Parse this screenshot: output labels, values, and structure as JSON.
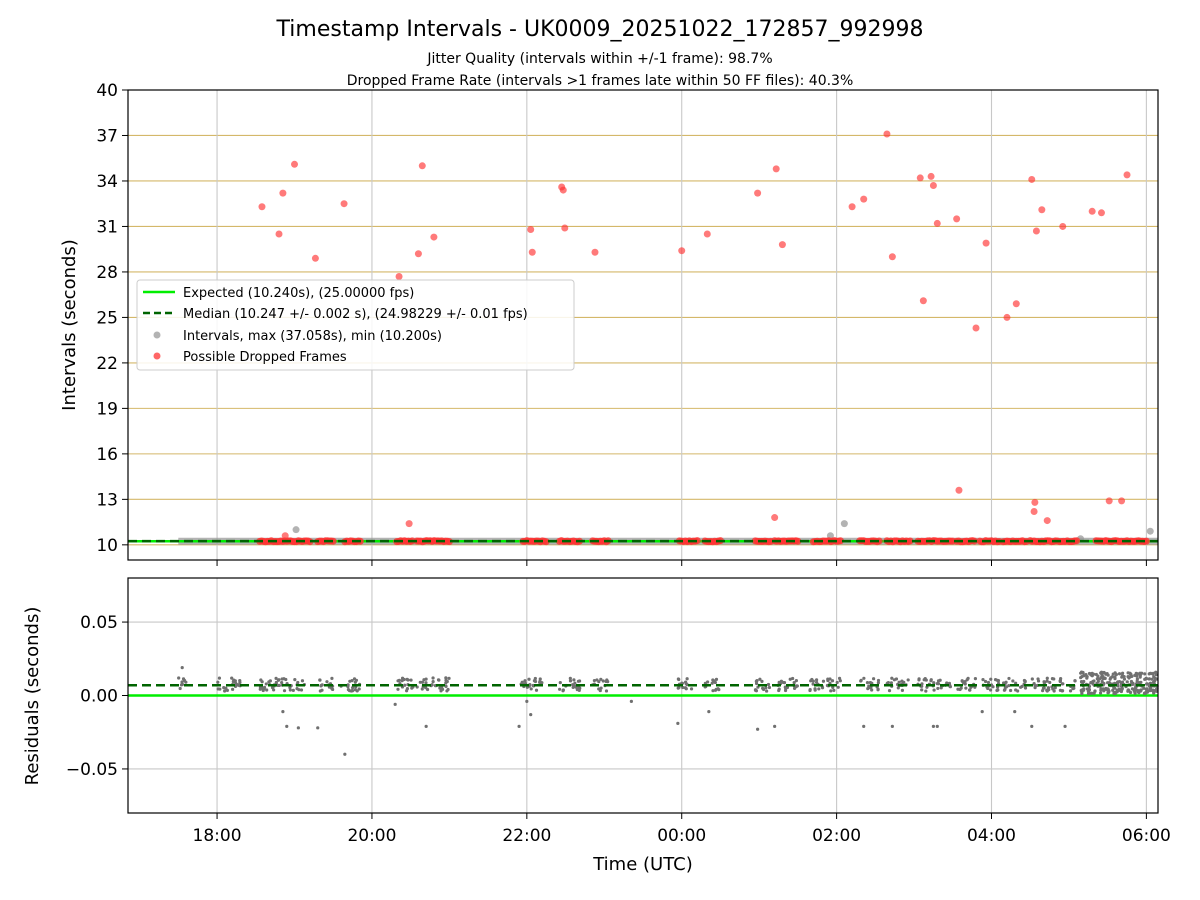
{
  "chart_data": {
    "type": "scatter",
    "title": "Timestamp Intervals - UK0009_20251022_172857_992998",
    "subtitle_1": "Jitter Quality (intervals within +/-1 frame): 98.7%",
    "subtitle_2": "Dropped Frame Rate (intervals >1 frames late within 50 FF files): 40.3%",
    "xlabel": "Time (UTC)",
    "x_ticks": [
      "18:00",
      "20:00",
      "22:00",
      "00:00",
      "02:00",
      "04:00",
      "06:00"
    ],
    "x_tick_hours": [
      18,
      20,
      22,
      24,
      26,
      28,
      30
    ],
    "xlim_hours": [
      16.85,
      30.15
    ],
    "top_panel": {
      "ylabel": "Intervals (seconds)",
      "ylim": [
        9,
        40
      ],
      "y_ticks": [
        "10",
        "13",
        "16",
        "19",
        "22",
        "25",
        "28",
        "31",
        "34",
        "37",
        "40"
      ],
      "expected_interval": 10.24,
      "median_interval": 10.247,
      "max_interval": 37.058,
      "min_interval": 10.2,
      "dropped_frames_high": [
        [
          18.58,
          32.3
        ],
        [
          18.8,
          30.5
        ],
        [
          18.85,
          33.2
        ],
        [
          18.88,
          10.6
        ],
        [
          19.0,
          35.1
        ],
        [
          19.27,
          28.9
        ],
        [
          19.64,
          32.5
        ],
        [
          20.35,
          27.7
        ],
        [
          20.48,
          11.4
        ],
        [
          20.6,
          29.2
        ],
        [
          20.65,
          35.0
        ],
        [
          20.8,
          30.3
        ],
        [
          22.05,
          30.8
        ],
        [
          22.07,
          29.3
        ],
        [
          22.45,
          33.6
        ],
        [
          22.47,
          33.4
        ],
        [
          22.49,
          30.9
        ],
        [
          22.88,
          29.3
        ],
        [
          24.0,
          29.4
        ],
        [
          24.33,
          30.5
        ],
        [
          24.98,
          33.2
        ],
        [
          25.2,
          11.8
        ],
        [
          25.22,
          34.8
        ],
        [
          25.3,
          29.8
        ],
        [
          26.2,
          32.3
        ],
        [
          26.35,
          32.8
        ],
        [
          26.65,
          37.1
        ],
        [
          26.72,
          29.0
        ],
        [
          27.08,
          34.2
        ],
        [
          27.12,
          26.1
        ],
        [
          27.22,
          34.3
        ],
        [
          27.25,
          33.7
        ],
        [
          27.3,
          31.2
        ],
        [
          27.55,
          31.5
        ],
        [
          27.58,
          13.6
        ],
        [
          27.8,
          24.3
        ],
        [
          27.93,
          29.9
        ],
        [
          28.2,
          25.0
        ],
        [
          28.32,
          25.9
        ],
        [
          28.52,
          34.1
        ],
        [
          28.55,
          12.2
        ],
        [
          28.56,
          12.8
        ],
        [
          28.58,
          30.7
        ],
        [
          28.65,
          32.1
        ],
        [
          28.72,
          11.6
        ],
        [
          28.92,
          31.0
        ],
        [
          29.3,
          32.0
        ],
        [
          29.42,
          31.9
        ],
        [
          29.52,
          12.9
        ],
        [
          29.68,
          12.9
        ],
        [
          29.75,
          34.4
        ]
      ],
      "dropped_frame_clusters_at_10s": [
        [
          18.55,
          19.2
        ],
        [
          19.3,
          19.5
        ],
        [
          19.65,
          19.85
        ],
        [
          20.32,
          20.52
        ],
        [
          20.58,
          21.0
        ],
        [
          21.95,
          22.25
        ],
        [
          22.42,
          22.68
        ],
        [
          22.85,
          23.05
        ],
        [
          23.97,
          24.2
        ],
        [
          24.3,
          24.5
        ],
        [
          24.95,
          25.15
        ],
        [
          25.2,
          25.5
        ],
        [
          25.7,
          26.05
        ],
        [
          26.3,
          26.55
        ],
        [
          26.65,
          26.95
        ],
        [
          27.05,
          27.5
        ],
        [
          27.55,
          27.78
        ],
        [
          27.85,
          28.1
        ],
        [
          28.15,
          28.45
        ],
        [
          28.5,
          28.85
        ],
        [
          28.88,
          29.1
        ],
        [
          29.35,
          30.0
        ]
      ],
      "other_intervals_high": [
        [
          19.02,
          11.0
        ],
        [
          25.92,
          10.6
        ],
        [
          26.1,
          11.4
        ],
        [
          29.15,
          10.4
        ],
        [
          30.05,
          10.9
        ]
      ],
      "interval_baseline_range": [
        17.5,
        30.15
      ]
    },
    "bottom_panel": {
      "ylabel": "Residuals (seconds)",
      "ylim": [
        -0.08,
        0.08
      ],
      "y_ticks": [
        "0.05",
        "0.00",
        "−0.05"
      ],
      "y_tick_values": [
        0.05,
        0.0,
        -0.05
      ],
      "expected_residual": 0.0,
      "median_residual": 0.007,
      "residual_clusters": [
        [
          17.5,
          17.6
        ],
        [
          18.0,
          18.3
        ],
        [
          18.55,
          19.15
        ],
        [
          19.3,
          19.5
        ],
        [
          19.6,
          19.85
        ],
        [
          20.32,
          20.55
        ],
        [
          20.58,
          21.0
        ],
        [
          21.9,
          22.2
        ],
        [
          22.4,
          22.7
        ],
        [
          22.85,
          23.05
        ],
        [
          23.95,
          24.15
        ],
        [
          24.3,
          24.5
        ],
        [
          24.95,
          25.15
        ],
        [
          25.2,
          25.5
        ],
        [
          25.65,
          26.05
        ],
        [
          26.3,
          26.55
        ],
        [
          26.65,
          26.95
        ],
        [
          27.05,
          27.5
        ],
        [
          27.55,
          27.8
        ],
        [
          27.85,
          28.1
        ],
        [
          28.15,
          28.45
        ],
        [
          28.5,
          28.85
        ],
        [
          28.88,
          29.1
        ],
        [
          29.15,
          30.15
        ]
      ],
      "residual_outliers": [
        [
          17.55,
          0.019
        ],
        [
          18.9,
          -0.021
        ],
        [
          19.05,
          -0.022
        ],
        [
          19.3,
          -0.022
        ],
        [
          19.65,
          -0.04
        ],
        [
          18.85,
          -0.011
        ],
        [
          20.7,
          -0.021
        ],
        [
          21.9,
          -0.021
        ],
        [
          22.05,
          -0.013
        ],
        [
          23.95,
          -0.019
        ],
        [
          24.35,
          -0.011
        ],
        [
          24.98,
          -0.023
        ],
        [
          25.2,
          -0.021
        ],
        [
          26.35,
          -0.021
        ],
        [
          26.72,
          -0.021
        ],
        [
          27.25,
          -0.021
        ],
        [
          27.3,
          -0.021
        ],
        [
          27.88,
          -0.011
        ],
        [
          28.3,
          -0.011
        ],
        [
          28.52,
          -0.021
        ],
        [
          28.95,
          -0.021
        ],
        [
          20.3,
          -0.006
        ],
        [
          22.0,
          -0.004
        ],
        [
          23.35,
          -0.004
        ]
      ]
    },
    "legend": [
      {
        "label": "Expected (10.240s), (25.00000 fps)",
        "marker": "line",
        "color": "#00ee00"
      },
      {
        "label": "Median (10.247 +/- 0.002 s), (24.98229 +/- 0.01 fps)",
        "marker": "dashed-line",
        "color": "#006400"
      },
      {
        "label": "Intervals, max (37.058s), min (10.200s)",
        "marker": "dot",
        "color": "#999999"
      },
      {
        "label": "Possible Dropped Frames",
        "marker": "dot",
        "color": "#ff4444"
      }
    ],
    "legend_position": "center-left",
    "colors": {
      "expected": "#00ee00",
      "median": "#006400",
      "intervals": "#9a9a9a",
      "residuals": "#707070",
      "dropped": "#ff3333",
      "horizontal_grid": "#d4b86a",
      "vertical_grid": "#c8c8c8"
    }
  }
}
